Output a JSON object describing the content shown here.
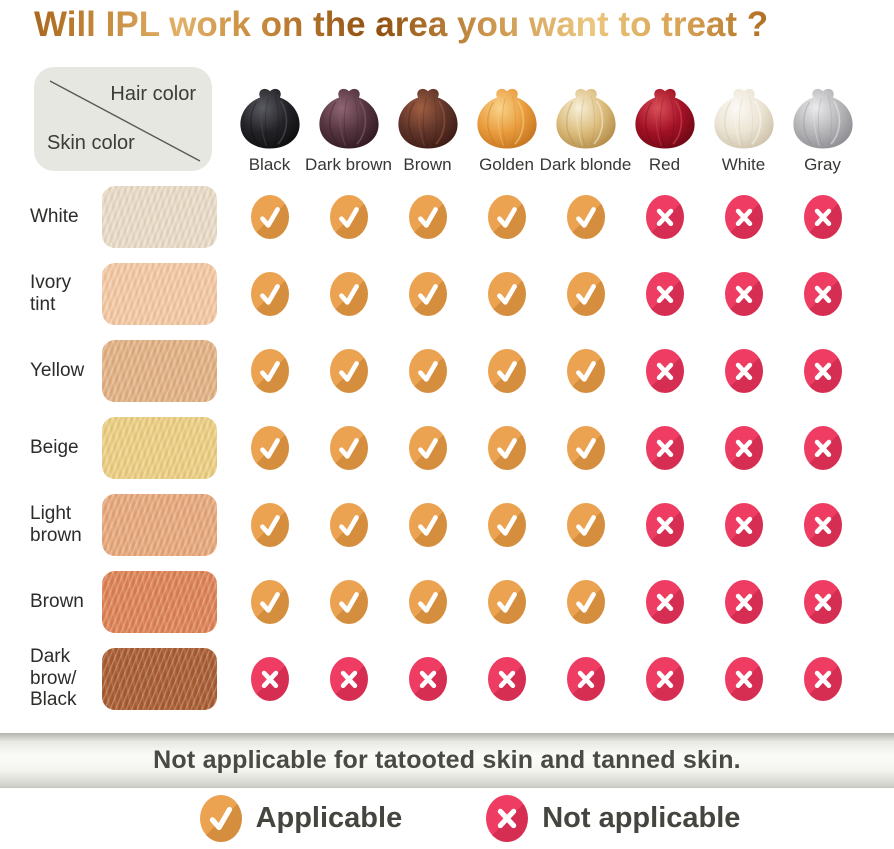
{
  "title": "Will IPL work on the area you want to treat ?",
  "corner": {
    "hair_label": "Hair color",
    "skin_label": "Skin color"
  },
  "hair_columns": [
    {
      "label": "Black",
      "base": "#232327",
      "highlight": "#5a5a62",
      "dark": "#0b0b0d"
    },
    {
      "label": "Dark brown",
      "base": "#54343f",
      "highlight": "#8f6573",
      "dark": "#2b141d"
    },
    {
      "label": "Brown",
      "base": "#60352a",
      "highlight": "#a05e41",
      "dark": "#361710"
    },
    {
      "label": "Golden",
      "base": "#e99d3e",
      "highlight": "#f9d38b",
      "dark": "#c06e1a"
    },
    {
      "label": "Dark blonde",
      "base": "#dcbd7e",
      "highlight": "#f7efd8",
      "dark": "#ad8440"
    },
    {
      "label": "Red",
      "base": "#a31126",
      "highlight": "#d94f58",
      "dark": "#650713"
    },
    {
      "label": "White",
      "base": "#ece5d5",
      "highlight": "#fcfaf5",
      "dark": "#c9bda4"
    },
    {
      "label": "Gray",
      "base": "#b6b6b9",
      "highlight": "#ebebed",
      "dark": "#87878c"
    }
  ],
  "skin_rows": [
    {
      "label": "White",
      "color": "#e9dcc8"
    },
    {
      "label": "Ivory tint",
      "color": "#f4c9a4"
    },
    {
      "label": "Yellow",
      "color": "#e2b184"
    },
    {
      "label": "Beige",
      "color": "#eccf82"
    },
    {
      "label": "Light brown",
      "color": "#e7a87b"
    },
    {
      "label": "Brown",
      "color": "#dd8154"
    },
    {
      "label": "Dark brow/ Black",
      "color": "#a75b31"
    }
  ],
  "icons": {
    "yes_base": "#eba351",
    "yes_shadow": "#d58e3e",
    "no_base": "#ee3c63",
    "no_shadow": "#d62e52"
  },
  "footer_note": "Not applicable for tatooted skin and tanned skin.",
  "legend": [
    {
      "type": "yes",
      "label": "Applicable"
    },
    {
      "type": "no",
      "label": "Not applicable"
    }
  ],
  "chart_data": {
    "type": "table",
    "title": "Will IPL work on the area you want to treat ?",
    "columns": [
      "Black",
      "Dark brown",
      "Brown",
      "Golden",
      "Dark blonde",
      "Red",
      "White",
      "Gray"
    ],
    "rows": [
      "White",
      "Ivory tint",
      "Yellow",
      "Beige",
      "Light brown",
      "Brown",
      "Dark brow/ Black"
    ],
    "cell_legend": {
      "yes": "Applicable",
      "no": "Not applicable"
    },
    "matrix": [
      [
        "yes",
        "yes",
        "yes",
        "yes",
        "yes",
        "no",
        "no",
        "no"
      ],
      [
        "yes",
        "yes",
        "yes",
        "yes",
        "yes",
        "no",
        "no",
        "no"
      ],
      [
        "yes",
        "yes",
        "yes",
        "yes",
        "yes",
        "no",
        "no",
        "no"
      ],
      [
        "yes",
        "yes",
        "yes",
        "yes",
        "yes",
        "no",
        "no",
        "no"
      ],
      [
        "yes",
        "yes",
        "yes",
        "yes",
        "yes",
        "no",
        "no",
        "no"
      ],
      [
        "yes",
        "yes",
        "yes",
        "yes",
        "yes",
        "no",
        "no",
        "no"
      ],
      [
        "no",
        "no",
        "no",
        "no",
        "no",
        "no",
        "no",
        "no"
      ]
    ],
    "footnote": "Not applicable for tatooted skin and tanned skin."
  }
}
